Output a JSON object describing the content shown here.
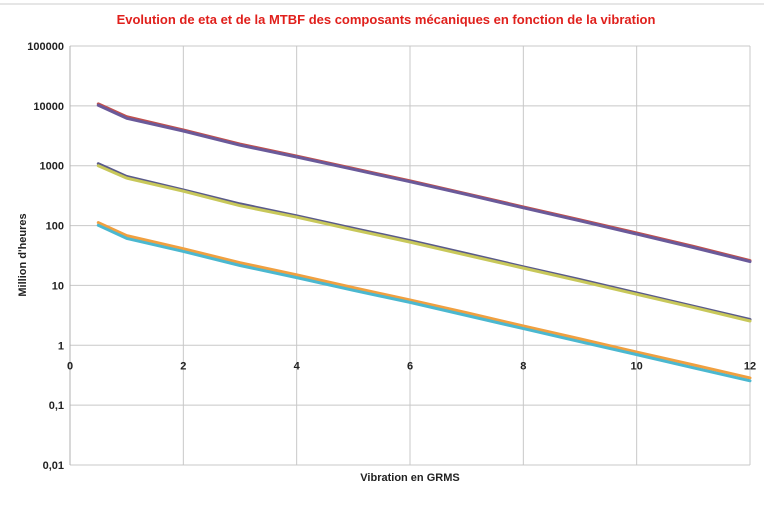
{
  "chart_data": {
    "type": "line",
    "title": "Evolution de eta et de la MTBF des composants mécaniques en fonction de la  vibration",
    "xlabel": "Vibration en GRMS",
    "ylabel": "Million d'heures",
    "xlim": [
      0,
      12
    ],
    "ylim": [
      0.01,
      100000
    ],
    "y_scale": "log",
    "grid": true,
    "x_ticks": [
      0,
      2,
      4,
      6,
      8,
      10,
      12
    ],
    "x_tick_labels": [
      "0",
      "2",
      "4",
      "6",
      "8",
      "10",
      "12"
    ],
    "y_ticks": [
      0.01,
      0.1,
      1,
      10,
      100,
      1000,
      10000,
      100000
    ],
    "y_tick_labels": [
      "0,01",
      "0,1",
      "1",
      "10",
      "100",
      "1000",
      "10000",
      "100000"
    ],
    "x": [
      0.5,
      1,
      2,
      3,
      4,
      5,
      6,
      7,
      8,
      9,
      10,
      11,
      12
    ],
    "series": [
      {
        "color": "#c0504d",
        "values": [
          10800,
          6600,
          3950,
          2300,
          1450,
          900,
          560,
          340,
          205,
          125,
          75,
          45,
          26
        ]
      },
      {
        "color": "#6a5a9a",
        "values": [
          10200,
          6200,
          3800,
          2200,
          1400,
          870,
          540,
          330,
          198,
          120,
          72,
          43,
          25
        ]
      },
      {
        "color": "#5a5a8a",
        "values": [
          1080,
          660,
          395,
          230,
          145,
          90,
          56,
          34,
          20.5,
          12.5,
          7.5,
          4.5,
          2.7
        ]
      },
      {
        "color": "#c8c85a",
        "values": [
          1000,
          620,
          375,
          215,
          138,
          85,
          53,
          32,
          19.5,
          11.8,
          7.1,
          4.3,
          2.55
        ]
      },
      {
        "color": "#f0a040",
        "values": [
          112,
          68,
          41,
          24,
          15,
          9.2,
          5.7,
          3.5,
          2.1,
          1.28,
          0.77,
          0.47,
          0.285
        ]
      },
      {
        "color": "#4bb8d0",
        "values": [
          101,
          61,
          37,
          21.5,
          13.5,
          8.3,
          5.2,
          3.15,
          1.9,
          1.15,
          0.7,
          0.42,
          0.255
        ]
      }
    ]
  }
}
